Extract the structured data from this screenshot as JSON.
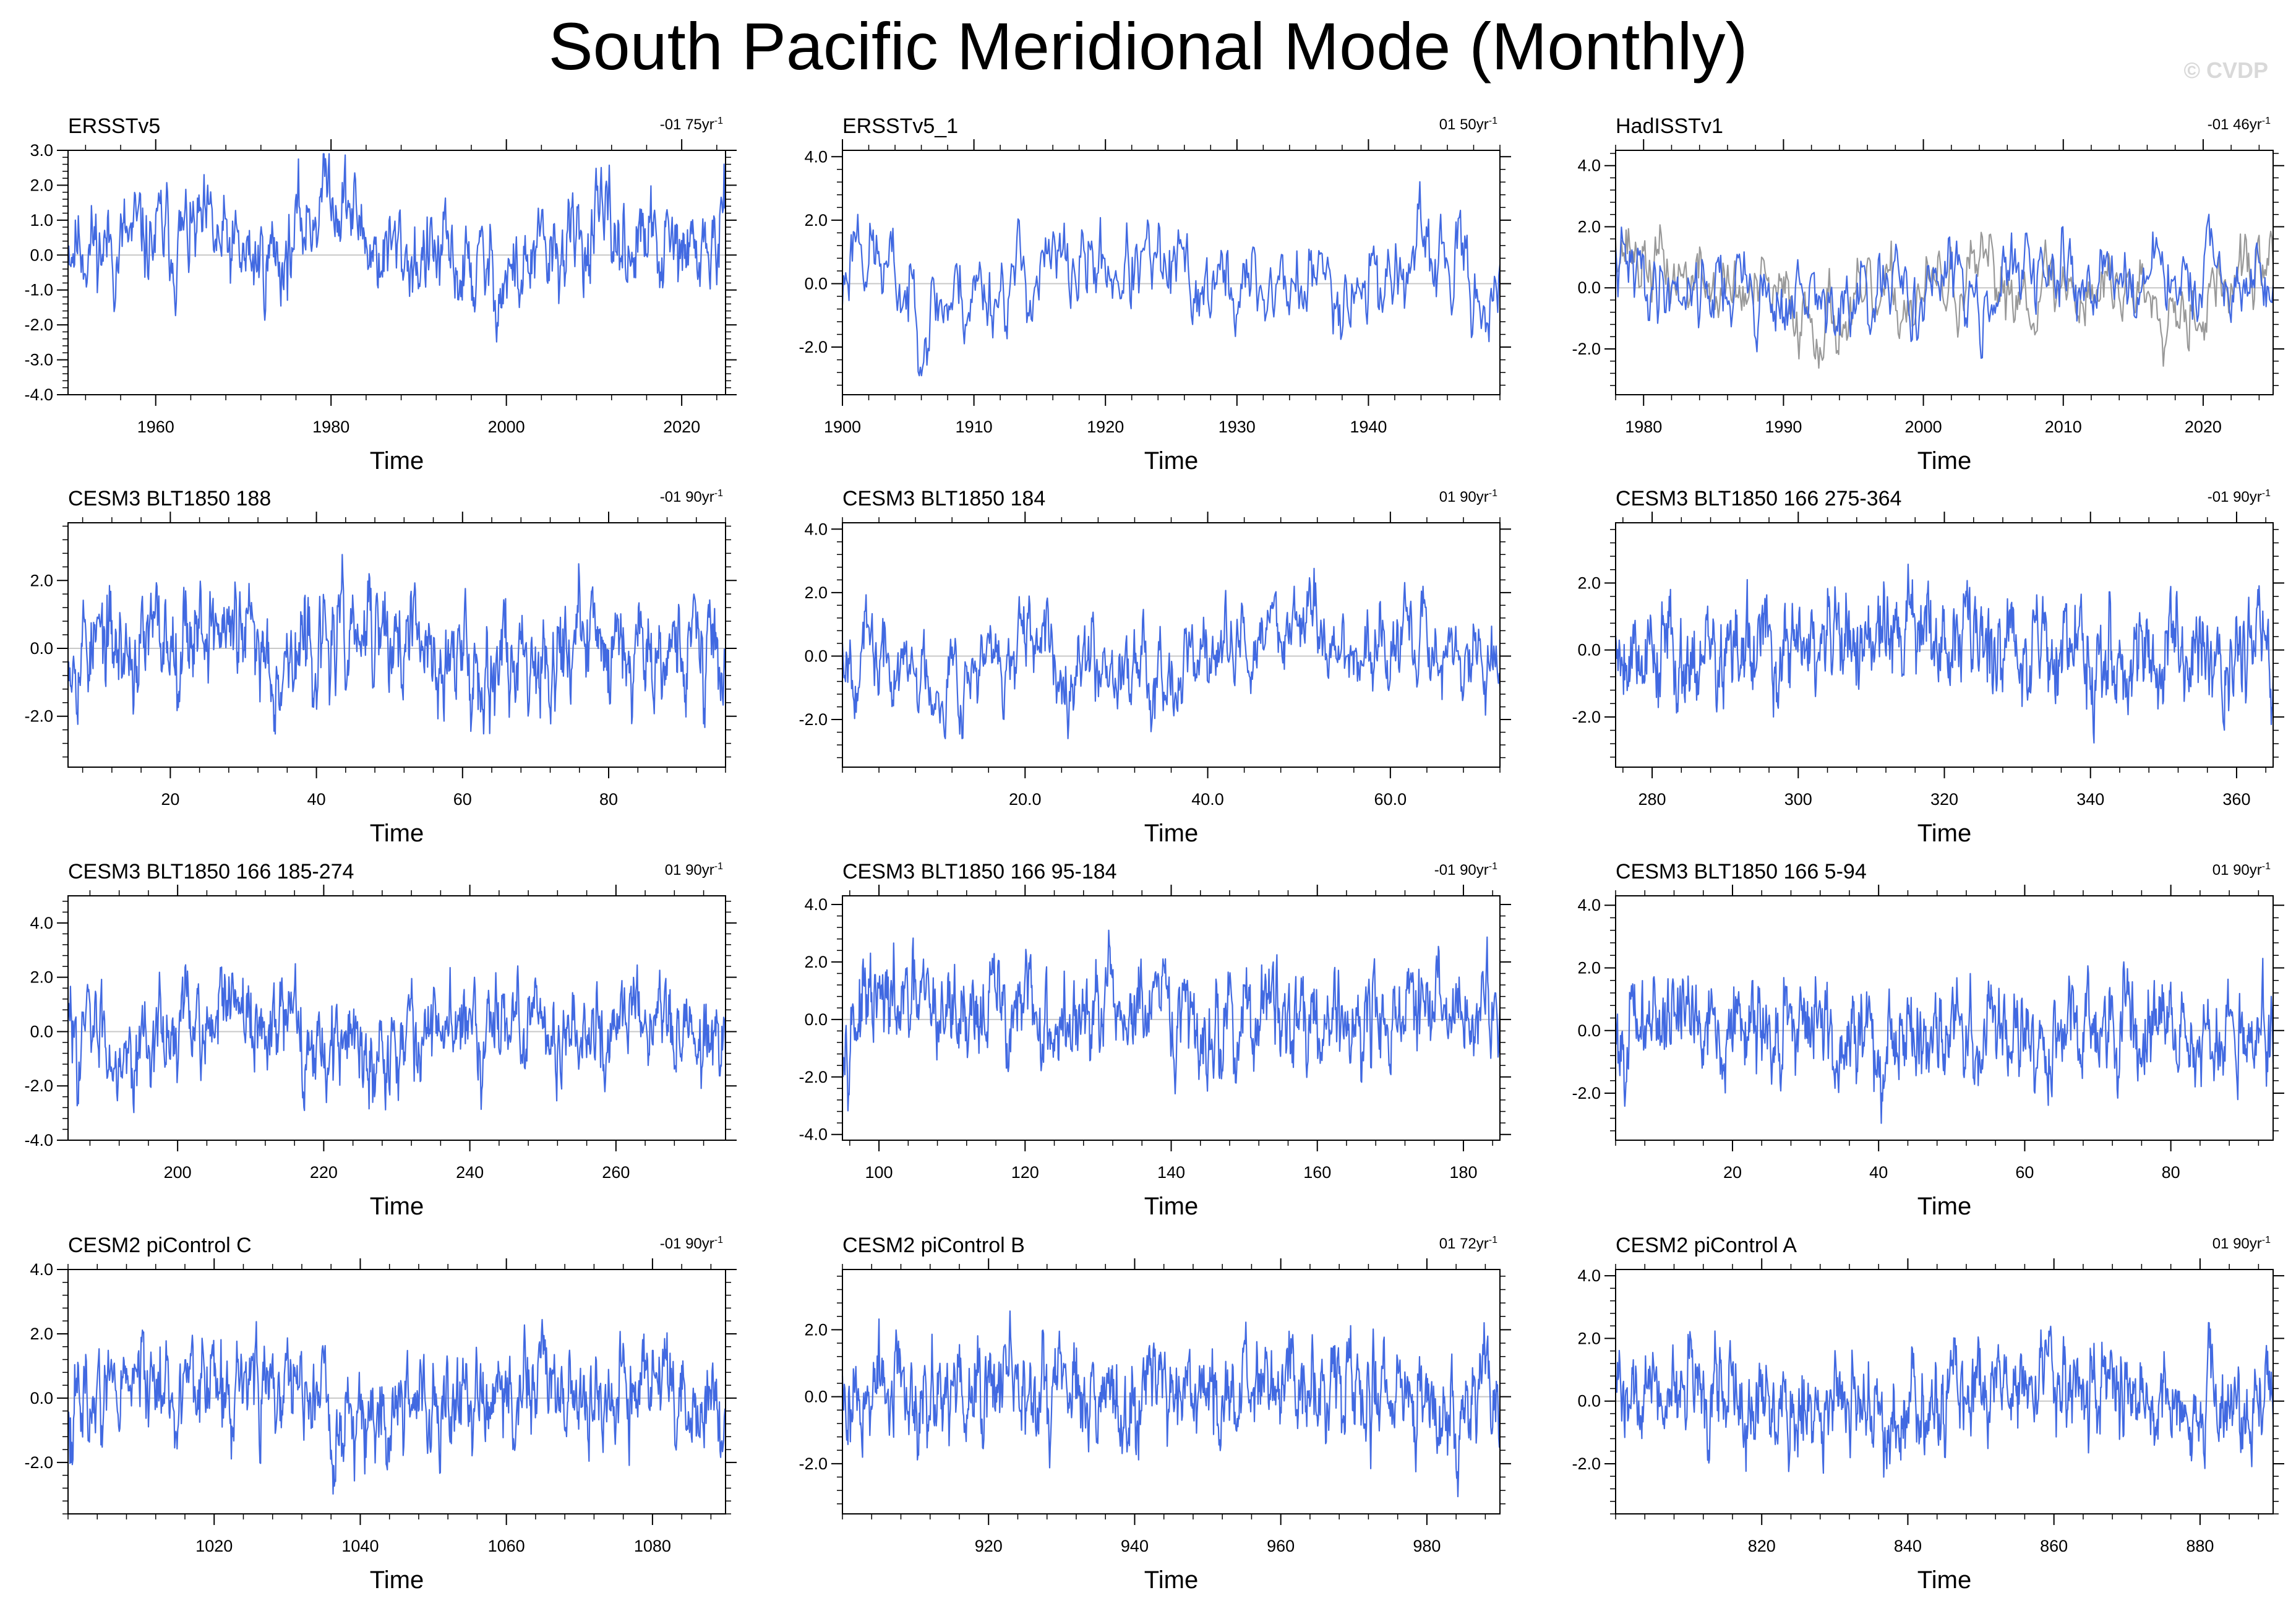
{
  "title": "South Pacific Meridional Mode (Monthly)",
  "copyright": "© CVDP",
  "colors": {
    "series": "#4169e1",
    "reference": "#999999",
    "zero_line": "#c8c8c8",
    "frame": "#000000"
  },
  "chart_data": [
    {
      "type": "line",
      "title": "ERSSTv5",
      "trend": "-01 75yr",
      "xlabel": "Time",
      "ylabel": "",
      "xlim": [
        1950,
        2025
      ],
      "ylim": [
        -4.0,
        3.0
      ],
      "xticks": [
        1960,
        1980,
        2000,
        2020
      ],
      "xtick_labels": [
        "1960",
        "1980",
        "2000",
        "2020"
      ],
      "yticks": [
        -4.0,
        -3.0,
        -2.0,
        -1.0,
        0.0,
        1.0,
        2.0,
        3.0
      ],
      "ytick_labels": [
        "-4.0",
        "-3.0",
        "-2.0",
        "-1.0",
        "0.0",
        "1.0",
        "2.0",
        "3.0"
      ],
      "series": [
        {
          "seed": 11,
          "months": 900,
          "x": [
            1950,
            1955,
            1960,
            1965,
            1970,
            1975,
            1980,
            1985,
            1990,
            1995,
            2000,
            2005,
            2010,
            2015,
            2020,
            2025
          ],
          "y": [
            0.6,
            0.2,
            0.4,
            0.5,
            -0.2,
            0.1,
            2.2,
            0.1,
            0.0,
            -0.4,
            -0.7,
            -0.1,
            0.6,
            0.3,
            -0.1,
            0.4
          ],
          "amp": 0.75,
          "min": -3.1,
          "max": 2.9
        }
      ]
    },
    {
      "type": "line",
      "title": "ERSSTv5_1",
      "trend": "01 50yr",
      "xlabel": "Time",
      "ylabel": "",
      "xlim": [
        1900,
        1950
      ],
      "ylim": [
        -3.5,
        4.2
      ],
      "xticks": [
        1900,
        1910,
        1920,
        1930,
        1940
      ],
      "xtick_labels": [
        "1900",
        "1910",
        "1920",
        "1930",
        "1940"
      ],
      "yticks": [
        -2.0,
        0.0,
        2.0,
        4.0
      ],
      "ytick_labels": [
        "-2.0",
        "0.0",
        "2.0",
        "4.0"
      ],
      "series": [
        {
          "seed": 23,
          "months": 600,
          "x": [
            1900,
            1901,
            1903,
            1906,
            1910,
            1915,
            1920,
            1925,
            1930,
            1935,
            1940,
            1945,
            1950
          ],
          "y": [
            -0.3,
            2.0,
            0.4,
            -0.8,
            -0.2,
            0.3,
            0.6,
            0.2,
            -0.2,
            0.0,
            0.1,
            0.8,
            -0.6
          ],
          "amp": 0.8,
          "min": -2.9,
          "max": 3.6
        }
      ]
    },
    {
      "type": "line",
      "title": "HadISSTv1",
      "trend": "-01 46yr",
      "xlabel": "Time",
      "ylabel": "",
      "xlim": [
        1978,
        2025
      ],
      "ylim": [
        -3.5,
        4.5
      ],
      "xticks": [
        1980,
        1990,
        2000,
        2010,
        2020
      ],
      "xtick_labels": [
        "1980",
        "1990",
        "2000",
        "2010",
        "2020"
      ],
      "yticks": [
        -2.0,
        0.0,
        2.0,
        4.0
      ],
      "ytick_labels": [
        "-2.0",
        "0.0",
        "2.0",
        "4.0"
      ],
      "series": [
        {
          "role": "reference",
          "seed": 37,
          "months": 564,
          "x": [
            1978,
            1980,
            1985,
            1990,
            1995,
            2000,
            2005,
            2010,
            2015,
            2020,
            2025
          ],
          "y": [
            2.0,
            0.8,
            0.0,
            -0.6,
            -1.0,
            -0.2,
            0.2,
            0.0,
            0.1,
            -0.4,
            0.8
          ],
          "amp": 0.7,
          "min": -2.8,
          "max": 2.8
        },
        {
          "role": "primary",
          "seed": 41,
          "months": 564,
          "x": [
            1978,
            1980,
            1985,
            1990,
            1995,
            2000,
            2005,
            2010,
            2015,
            2020,
            2025
          ],
          "y": [
            0.6,
            0.2,
            0.2,
            -0.4,
            -0.8,
            0.0,
            0.2,
            0.3,
            0.4,
            -0.1,
            0.2
          ],
          "amp": 0.75,
          "min": -3.0,
          "max": 3.9
        }
      ]
    },
    {
      "type": "line",
      "title": "CESM3 BLT1850 188",
      "trend": "-01 90yr",
      "xlabel": "Time",
      "ylabel": "",
      "xlim": [
        6,
        96
      ],
      "ylim": [
        -3.5,
        3.7
      ],
      "xticks": [
        20,
        40,
        60,
        80
      ],
      "xtick_labels": [
        "20",
        "40",
        "60",
        "80"
      ],
      "yticks": [
        -2.0,
        0.0,
        2.0
      ],
      "ytick_labels": [
        "-2.0",
        "0.0",
        "2.0"
      ],
      "series": [
        {
          "seed": 53,
          "months": 1080,
          "x": [
            6,
            15,
            24,
            35,
            48,
            60,
            72,
            84,
            96
          ],
          "y": [
            0.4,
            -0.2,
            0.9,
            -0.3,
            0.4,
            -0.5,
            0.1,
            0.4,
            -0.2
          ],
          "amp": 0.85,
          "min": -2.8,
          "max": 3.2
        }
      ]
    },
    {
      "type": "line",
      "title": "CESM3 BLT1850 184",
      "trend": "01 90yr",
      "xlabel": "Time",
      "ylabel": "",
      "xlim": [
        0,
        72
      ],
      "ylim": [
        -3.5,
        4.2
      ],
      "xticks": [
        20.0,
        40.0,
        60.0
      ],
      "xtick_labels": [
        "20.0",
        "40.0",
        "60.0"
      ],
      "yticks": [
        -2.0,
        0.0,
        2.0,
        4.0
      ],
      "ytick_labels": [
        "-2.0",
        "0.0",
        "2.0",
        "4.0"
      ],
      "series": [
        {
          "seed": 67,
          "months": 864,
          "x": [
            0,
            6,
            15,
            25,
            35,
            45,
            50,
            55,
            62,
            72
          ],
          "y": [
            0.6,
            -0.6,
            -0.4,
            0.1,
            -0.2,
            0.2,
            1.6,
            0.0,
            0.4,
            -0.4
          ],
          "amp": 0.75,
          "min": -2.6,
          "max": 3.5
        }
      ]
    },
    {
      "type": "line",
      "title": "CESM3 BLT1850 166 275-364",
      "trend": "-01 90yr",
      "xlabel": "Time",
      "ylabel": "",
      "xlim": [
        275,
        365
      ],
      "ylim": [
        -3.5,
        3.8
      ],
      "xticks": [
        280,
        300,
        320,
        340,
        360
      ],
      "xtick_labels": [
        "280",
        "300",
        "320",
        "340",
        "360"
      ],
      "yticks": [
        -2.0,
        0.0,
        2.0
      ],
      "ytick_labels": [
        "-2.0",
        "0.0",
        "2.0"
      ],
      "series": [
        {
          "seed": 79,
          "months": 1080,
          "x": [
            275,
            290,
            305,
            315,
            330,
            345,
            365
          ],
          "y": [
            0.3,
            -0.3,
            0.1,
            0.5,
            0.4,
            -0.2,
            0.0
          ],
          "amp": 0.85,
          "min": -3.1,
          "max": 3.5
        }
      ]
    },
    {
      "type": "line",
      "title": "CESM3 BLT1850 166 185-274",
      "trend": "01 90yr",
      "xlabel": "Time",
      "ylabel": "",
      "xlim": [
        185,
        275
      ],
      "ylim": [
        -4.0,
        5.0
      ],
      "xticks": [
        200,
        220,
        240,
        260
      ],
      "xtick_labels": [
        "200",
        "220",
        "240",
        "260"
      ],
      "yticks": [
        -4.0,
        -2.0,
        0.0,
        2.0,
        4.0
      ],
      "ytick_labels": [
        "-4.0",
        "-2.0",
        "0.0",
        "2.0",
        "4.0"
      ],
      "series": [
        {
          "seed": 83,
          "months": 1080,
          "x": [
            185,
            195,
            205,
            215,
            225,
            235,
            245,
            255,
            265,
            275
          ],
          "y": [
            0.0,
            -0.4,
            0.5,
            0.0,
            -0.5,
            0.0,
            0.5,
            0.1,
            0.2,
            -0.2
          ],
          "amp": 0.95,
          "min": -3.6,
          "max": 4.5
        }
      ]
    },
    {
      "type": "line",
      "title": "CESM3 BLT1850 166 95-184",
      "trend": "-01 90yr",
      "xlabel": "Time",
      "ylabel": "",
      "xlim": [
        95,
        185
      ],
      "ylim": [
        -4.2,
        4.3
      ],
      "xticks": [
        100,
        120,
        140,
        160,
        180
      ],
      "xtick_labels": [
        "100",
        "120",
        "140",
        "160",
        "180"
      ],
      "yticks": [
        -4.0,
        -2.0,
        0.0,
        2.0,
        4.0
      ],
      "ytick_labels": [
        "-4.0",
        "-2.0",
        "0.0",
        "2.0",
        "4.0"
      ],
      "series": [
        {
          "seed": 97,
          "months": 1080,
          "x": [
            95,
            105,
            115,
            125,
            135,
            145,
            155,
            165,
            175,
            185
          ],
          "y": [
            0.3,
            0.2,
            0.5,
            -0.3,
            0.2,
            -0.4,
            0.3,
            0.0,
            0.2,
            0.6
          ],
          "amp": 0.95,
          "min": -3.9,
          "max": 3.8
        }
      ]
    },
    {
      "type": "line",
      "title": "CESM3 BLT1850 166 5-94",
      "trend": "01 90yr",
      "xlabel": "Time",
      "ylabel": "",
      "xlim": [
        4,
        94
      ],
      "ylim": [
        -3.5,
        4.3
      ],
      "xticks": [
        20,
        40,
        60,
        80
      ],
      "xtick_labels": [
        "20",
        "40",
        "60",
        "80"
      ],
      "yticks": [
        -2.0,
        0.0,
        2.0,
        4.0
      ],
      "ytick_labels": [
        "-2.0",
        "0.0",
        "2.0",
        "4.0"
      ],
      "series": [
        {
          "seed": 101,
          "months": 1080,
          "x": [
            4,
            12,
            20,
            30,
            40,
            50,
            60,
            70,
            80,
            94
          ],
          "y": [
            -0.3,
            0.8,
            0.0,
            0.2,
            -0.2,
            0.3,
            -0.3,
            0.3,
            0.2,
            -0.4
          ],
          "amp": 0.85,
          "min": -3.2,
          "max": 4.1
        }
      ]
    },
    {
      "type": "line",
      "title": "CESM2 piControl C",
      "trend": "-01 90yr",
      "xlabel": "Time",
      "ylabel": "",
      "xlim": [
        1000,
        1090
      ],
      "ylim": [
        -3.6,
        4.0
      ],
      "xticks": [
        1020,
        1040,
        1060,
        1080
      ],
      "xtick_labels": [
        "1020",
        "1040",
        "1060",
        "1080"
      ],
      "yticks": [
        -2.0,
        0.0,
        2.0,
        4.0
      ],
      "ytick_labels": [
        "-2.0",
        "0.0",
        "2.0",
        "4.0"
      ],
      "series": [
        {
          "seed": 113,
          "months": 1080,
          "x": [
            1000,
            1010,
            1020,
            1030,
            1040,
            1050,
            1060,
            1070,
            1080,
            1090
          ],
          "y": [
            -0.2,
            0.5,
            0.2,
            0.4,
            -0.8,
            -0.2,
            0.2,
            0.0,
            0.5,
            -0.8
          ],
          "amp": 0.85,
          "min": -3.1,
          "max": 3.5
        }
      ]
    },
    {
      "type": "line",
      "title": "CESM2 piControl B",
      "trend": "01 72yr",
      "xlabel": "Time",
      "ylabel": "",
      "xlim": [
        900,
        990
      ],
      "ylim": [
        -3.5,
        3.8
      ],
      "xticks": [
        920,
        940,
        960,
        980
      ],
      "xtick_labels": [
        "920",
        "940",
        "960",
        "980"
      ],
      "yticks": [
        -2.0,
        0.0,
        2.0
      ],
      "ytick_labels": [
        "-2.0",
        "0.0",
        "2.0"
      ],
      "series": [
        {
          "seed": 127,
          "months": 1080,
          "x": [
            900,
            910,
            920,
            930,
            940,
            950,
            960,
            970,
            980,
            990
          ],
          "y": [
            0.2,
            0.0,
            0.3,
            -0.2,
            0.2,
            0.1,
            -0.1,
            0.4,
            -0.3,
            0.0
          ],
          "amp": 0.85,
          "min": -3.2,
          "max": 3.0
        }
      ]
    },
    {
      "type": "line",
      "title": "CESM2 piControl A",
      "trend": "01 90yr",
      "xlabel": "Time",
      "ylabel": "",
      "xlim": [
        800,
        890
      ],
      "ylim": [
        -3.6,
        4.2
      ],
      "xticks": [
        820,
        840,
        860,
        880
      ],
      "xtick_labels": [
        "820",
        "840",
        "860",
        "880"
      ],
      "yticks": [
        -2.0,
        0.0,
        2.0,
        4.0
      ],
      "ytick_labels": [
        "-2.0",
        "0.0",
        "2.0",
        "4.0"
      ],
      "series": [
        {
          "seed": 139,
          "months": 1080,
          "x": [
            800,
            810,
            820,
            830,
            840,
            850,
            860,
            870,
            880,
            890
          ],
          "y": [
            0.0,
            0.5,
            0.2,
            -0.3,
            -0.6,
            0.2,
            0.3,
            0.3,
            0.0,
            -0.3
          ],
          "amp": 0.85,
          "min": -2.8,
          "max": 3.5
        }
      ]
    }
  ]
}
